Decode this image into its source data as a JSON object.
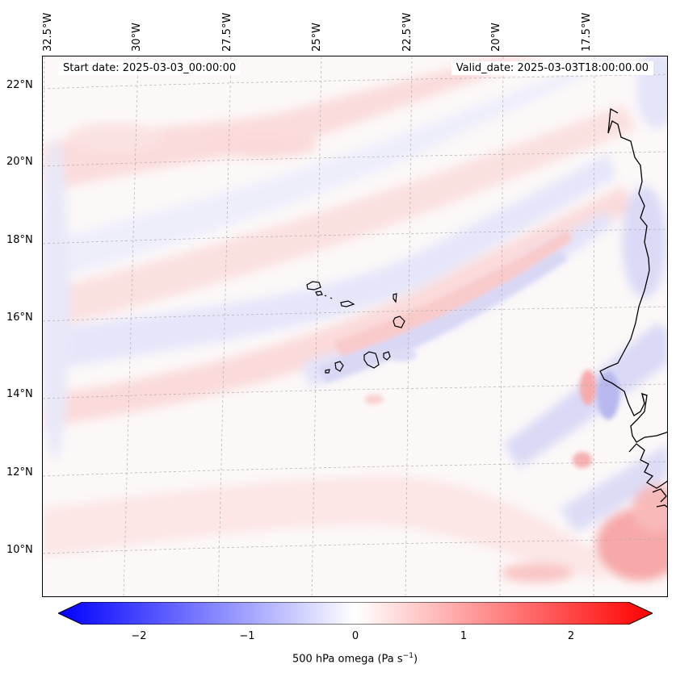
{
  "map": {
    "start_date": "Start date: 2025-03-03_00:00:00",
    "valid_date": "Valid_date: 2025-03-03T18:00:00.00",
    "lon_labels": [
      "32.5°W",
      "30°W",
      "27.5°W",
      "25°W",
      "22.5°W",
      "20°W",
      "17.5°W"
    ],
    "lat_labels": [
      "22°N",
      "20°N",
      "18°N",
      "16°N",
      "14°N",
      "12°N",
      "10°N"
    ]
  },
  "colorbar": {
    "ticks": [
      "−2",
      "−1",
      "0",
      "1",
      "2"
    ],
    "label_main": "500 hPa omega (Pa s",
    "label_exp": "−1",
    "label_close": ")",
    "min_color": "#0000ff",
    "mid_color": "#ffffff",
    "max_color": "#ff0000"
  },
  "colors": {
    "positive": "#ff0000",
    "negative": "#0000ff",
    "coastline": "#000000",
    "gridline": "#b0b0b0"
  }
}
